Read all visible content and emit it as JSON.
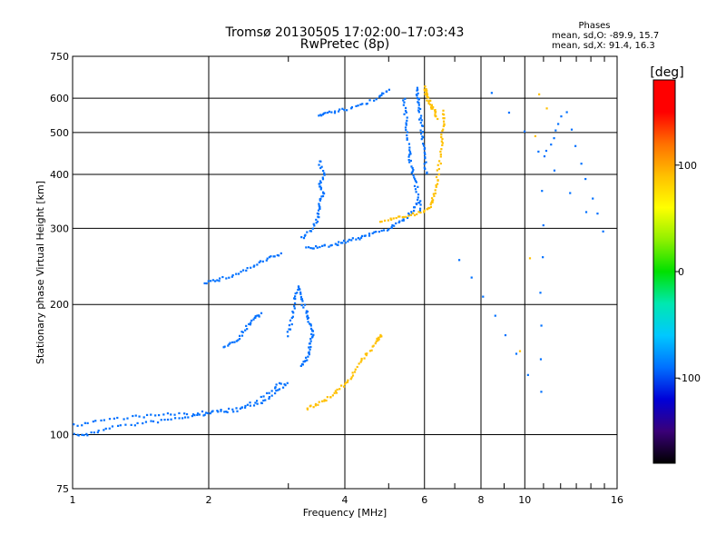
{
  "chart_data": {
    "type": "scatter",
    "title": "Tromsø 20130505 17:02:00–17:03:43",
    "subtitle": "RwPretec (8p)",
    "xlabel": "Frequency [MHz]",
    "ylabel": "Stationary phase Virtual Height [km]",
    "x_scale": "log",
    "y_scale": "log",
    "xlim": [
      1,
      16
    ],
    "ylim": [
      75,
      750
    ],
    "x_ticks": [
      1,
      2,
      4,
      6,
      8,
      10,
      16
    ],
    "x_tick_labels": [
      "1",
      "2",
      "4",
      "6",
      "8",
      "10",
      "16"
    ],
    "y_ticks": [
      75,
      100,
      200,
      300,
      400,
      500,
      600,
      750
    ],
    "y_tick_labels": [
      "75",
      "100",
      "200",
      "300",
      "400",
      "500",
      "600",
      "750"
    ],
    "grid": true,
    "phase_stats": {
      "title": "Phases",
      "line_o": "mean, sd,O: -89.9, 15.7",
      "line_x": "mean, sd,X:  91.4, 16.3"
    },
    "colorbar": {
      "label": "[deg]",
      "range": [
        -180,
        180
      ],
      "ticks": [
        100,
        0,
        -100
      ],
      "tick_labels": [
        "100",
        "0",
        "-100"
      ],
      "colors": [
        "#000000",
        "#3a0078",
        "#0000d8",
        "#0070ff",
        "#00c8ff",
        "#00e8b0",
        "#00e000",
        "#90f000",
        "#ffff00",
        "#ffc000",
        "#ff7000",
        "#ff0000",
        "#ff0000"
      ]
    },
    "series": [
      {
        "phase": -95,
        "points": [
          [
            1.0,
            100
          ],
          [
            1.08,
            100
          ],
          [
            1.2,
            104
          ],
          [
            1.4,
            106
          ],
          [
            1.6,
            108
          ],
          [
            1.8,
            110
          ],
          [
            2.0,
            112
          ],
          [
            2.3,
            114
          ],
          [
            2.6,
            118
          ],
          [
            2.8,
            125
          ],
          [
            3.0,
            132
          ]
        ]
      },
      {
        "phase": -90,
        "points": [
          [
            1.0,
            105
          ],
          [
            1.15,
            108
          ],
          [
            1.35,
            110
          ],
          [
            1.55,
            111
          ],
          [
            1.8,
            112
          ],
          [
            2.1,
            113
          ],
          [
            2.4,
            116
          ],
          [
            2.7,
            124
          ],
          [
            2.9,
            132
          ]
        ]
      },
      {
        "phase": -85,
        "points": [
          [
            2.15,
            160
          ],
          [
            2.3,
            165
          ],
          [
            2.4,
            175
          ],
          [
            2.5,
            185
          ],
          [
            2.6,
            190
          ]
        ]
      },
      {
        "phase": -95,
        "points": [
          [
            3.0,
            170
          ],
          [
            3.05,
            185
          ],
          [
            3.1,
            205
          ],
          [
            3.15,
            220
          ],
          [
            3.2,
            205
          ],
          [
            3.3,
            190
          ],
          [
            3.35,
            180
          ],
          [
            3.4,
            170
          ],
          [
            3.35,
            160
          ],
          [
            3.3,
            150
          ],
          [
            3.2,
            145
          ]
        ]
      },
      {
        "phase": -100,
        "points": [
          [
            1.95,
            225
          ],
          [
            2.1,
            228
          ],
          [
            2.3,
            235
          ],
          [
            2.5,
            245
          ],
          [
            2.7,
            255
          ],
          [
            2.9,
            262
          ]
        ]
      },
      {
        "phase": -95,
        "points": [
          [
            3.3,
            270
          ],
          [
            3.5,
            272
          ],
          [
            3.8,
            275
          ],
          [
            4.0,
            280
          ],
          [
            4.3,
            285
          ],
          [
            4.6,
            292
          ],
          [
            5.0,
            300
          ],
          [
            5.3,
            310
          ],
          [
            5.6,
            325
          ],
          [
            5.8,
            345
          ]
        ]
      },
      {
        "phase": -98,
        "points": [
          [
            3.2,
            285
          ],
          [
            3.4,
            300
          ],
          [
            3.5,
            320
          ],
          [
            3.5,
            340
          ],
          [
            3.6,
            360
          ],
          [
            3.5,
            380
          ],
          [
            3.6,
            400
          ],
          [
            3.5,
            430
          ]
        ]
      },
      {
        "phase": -90,
        "points": [
          [
            3.5,
            550
          ],
          [
            3.7,
            555
          ],
          [
            4.0,
            565
          ],
          [
            4.4,
            580
          ],
          [
            4.8,
            605
          ],
          [
            5.0,
            630
          ]
        ]
      },
      {
        "phase": -95,
        "points": [
          [
            5.4,
            600
          ],
          [
            5.45,
            550
          ],
          [
            5.5,
            500
          ],
          [
            5.55,
            450
          ],
          [
            5.6,
            420
          ],
          [
            5.7,
            390
          ],
          [
            5.8,
            360
          ],
          [
            5.9,
            330
          ]
        ]
      },
      {
        "phase": -95,
        "points": [
          [
            5.75,
            630
          ],
          [
            5.8,
            600
          ],
          [
            5.85,
            560
          ],
          [
            5.9,
            520
          ],
          [
            5.95,
            480
          ],
          [
            6.0,
            440
          ],
          [
            6.05,
            400
          ]
        ]
      },
      {
        "phase": 90,
        "points": [
          [
            3.3,
            115
          ],
          [
            3.5,
            118
          ],
          [
            3.7,
            122
          ],
          [
            3.9,
            128
          ],
          [
            4.1,
            135
          ],
          [
            4.3,
            145
          ],
          [
            4.5,
            155
          ],
          [
            4.7,
            165
          ],
          [
            4.8,
            170
          ]
        ]
      },
      {
        "phase": 95,
        "points": [
          [
            4.8,
            310
          ],
          [
            5.2,
            318
          ],
          [
            5.6,
            322
          ],
          [
            6.0,
            328
          ],
          [
            6.2,
            340
          ],
          [
            6.3,
            360
          ],
          [
            6.4,
            390
          ],
          [
            6.5,
            430
          ],
          [
            6.55,
            480
          ],
          [
            6.6,
            520
          ],
          [
            6.6,
            560
          ]
        ]
      },
      {
        "phase": 100,
        "points": [
          [
            6.0,
            640
          ],
          [
            6.05,
            620
          ],
          [
            6.1,
            600
          ],
          [
            6.2,
            580
          ],
          [
            6.3,
            560
          ],
          [
            6.4,
            540
          ]
        ]
      },
      {
        "phase": -100,
        "points": [
          [
            7.2,
            255
          ],
          [
            10.8,
            125
          ],
          [
            11.0,
            440
          ],
          [
            12.3,
            560
          ],
          [
            14.8,
            295
          ],
          [
            8.5,
            620
          ]
        ]
      },
      {
        "phase": 80,
        "points": [
          [
            10.8,
            610
          ],
          [
            10.5,
            490
          ],
          [
            9.8,
            155
          ],
          [
            10.3,
            255
          ],
          [
            11.2,
            570
          ]
        ]
      }
    ]
  }
}
